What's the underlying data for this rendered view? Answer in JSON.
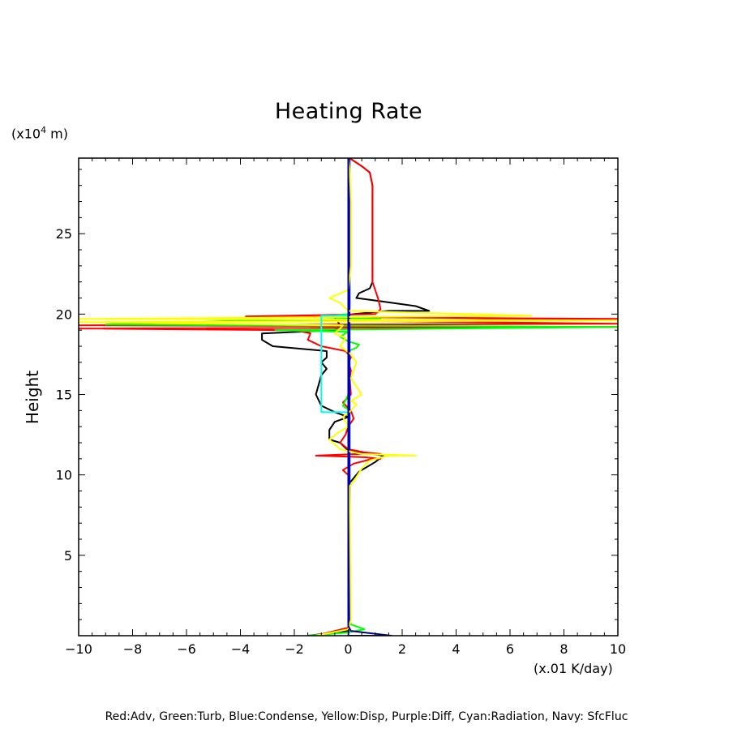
{
  "chart_data": {
    "type": "line",
    "title": "Heating Rate",
    "xlabel": "(x.01 K/day)",
    "ylabel": "Height",
    "yunit_prefix": "(x10",
    "yunit_exp": "4",
    "yunit_suffix": " m)",
    "xlim": [
      -10,
      10
    ],
    "ylim": [
      0,
      29.7
    ],
    "xticks": [
      -10,
      -8,
      -6,
      -4,
      -2,
      0,
      2,
      4,
      6,
      8,
      10
    ],
    "xtick_labels": [
      "−10",
      "−8",
      "−6",
      "−4",
      "−2",
      "0",
      "2",
      "4",
      "6",
      "8",
      "10"
    ],
    "yticks": [
      5,
      10,
      15,
      20,
      25
    ],
    "ytick_labels": [
      "5",
      "10",
      "15",
      "20",
      "25"
    ],
    "grid": false,
    "legend": "Red:Adv, Green:Turb, Blue:Condense, Yellow:Disp, Purple:Diff, Cyan:Radiation, Navy: SfcFluc",
    "series": [
      {
        "key": "total",
        "color": "#000000",
        "points": [
          [
            -1.5,
            0
          ],
          [
            0,
            0.3
          ],
          [
            0.05,
            1
          ],
          [
            0.05,
            9.5
          ],
          [
            0.4,
            10.2
          ],
          [
            1,
            10.8
          ],
          [
            1.3,
            11.2
          ],
          [
            0.5,
            11.4
          ],
          [
            0,
            11.5
          ],
          [
            -0.3,
            12
          ],
          [
            -0.7,
            12.2
          ],
          [
            -0.7,
            12.8
          ],
          [
            -0.5,
            13.3
          ],
          [
            0,
            13.6
          ],
          [
            -0.5,
            13.9
          ],
          [
            -1,
            14.3
          ],
          [
            -1.2,
            15
          ],
          [
            -1,
            16.2
          ],
          [
            -0.8,
            16.6
          ],
          [
            -1,
            17
          ],
          [
            -0.8,
            17.3
          ],
          [
            -0.8,
            17.7
          ],
          [
            -2.8,
            18
          ],
          [
            -3.2,
            18.4
          ],
          [
            -3.2,
            18.8
          ],
          [
            -0.5,
            19
          ],
          [
            -0.3,
            19.3
          ],
          [
            -0.5,
            19.8
          ],
          [
            0.2,
            20
          ],
          [
            1.5,
            20.2
          ],
          [
            3,
            20.2
          ],
          [
            2.5,
            20.5
          ],
          [
            1.2,
            20.8
          ],
          [
            0.3,
            21
          ],
          [
            0.4,
            21.3
          ],
          [
            0.8,
            21.6
          ],
          [
            0.9,
            22
          ],
          [
            0.9,
            28
          ],
          [
            0.8,
            28.8
          ],
          [
            0.5,
            29.2
          ],
          [
            0.05,
            29.7
          ]
        ]
      },
      {
        "key": "adv",
        "color": "#ff0000",
        "points": [
          [
            -1.2,
            0
          ],
          [
            0,
            0.5
          ],
          [
            0.05,
            1.2
          ],
          [
            0.05,
            9.6
          ],
          [
            0,
            10
          ],
          [
            -0.2,
            10.3
          ],
          [
            0.2,
            10.7
          ],
          [
            0.9,
            11
          ],
          [
            1.2,
            11
          ],
          [
            0.6,
            11.1
          ],
          [
            -1.2,
            11.2
          ],
          [
            0.4,
            11.3
          ],
          [
            1.2,
            11.3
          ],
          [
            0.6,
            11.4
          ],
          [
            0,
            11.6
          ],
          [
            -0.3,
            12
          ],
          [
            -0.1,
            12.5
          ],
          [
            0,
            13
          ],
          [
            0.2,
            13.5
          ],
          [
            0.1,
            14
          ],
          [
            -0.2,
            14.5
          ],
          [
            0.1,
            15
          ],
          [
            0.05,
            16
          ],
          [
            0.1,
            16.5
          ],
          [
            0,
            17
          ],
          [
            0.1,
            17.3
          ],
          [
            -0.1,
            17.7
          ],
          [
            -1,
            18
          ],
          [
            -1.5,
            18.4
          ],
          [
            -1.4,
            18.8
          ],
          [
            -2,
            19
          ],
          [
            -10,
            19.1
          ],
          [
            10,
            19.2
          ],
          [
            -10,
            19.3
          ],
          [
            10,
            19.4
          ],
          [
            -1,
            19.6
          ],
          [
            10,
            19.7
          ],
          [
            -3.8,
            19.85
          ],
          [
            1,
            20
          ],
          [
            1.2,
            20.3
          ],
          [
            1.1,
            21
          ],
          [
            0.9,
            22
          ],
          [
            0.9,
            28
          ],
          [
            0.8,
            28.8
          ],
          [
            0.5,
            29.2
          ],
          [
            0.05,
            29.7
          ]
        ]
      },
      {
        "key": "turb",
        "color": "#00ff00",
        "points": [
          [
            -1.5,
            0
          ],
          [
            0,
            0.2
          ],
          [
            0.6,
            0.4
          ],
          [
            0.1,
            0.7
          ],
          [
            0,
            1
          ],
          [
            0.05,
            4
          ],
          [
            0.05,
            14
          ],
          [
            -0.2,
            14.3
          ],
          [
            0,
            15
          ],
          [
            0,
            17.7
          ],
          [
            0.3,
            17.9
          ],
          [
            0.4,
            18.1
          ],
          [
            0,
            18.3
          ],
          [
            -0.3,
            18.6
          ],
          [
            0,
            18.9
          ],
          [
            -2.7,
            19
          ],
          [
            10,
            19.2
          ],
          [
            -9,
            19.35
          ],
          [
            -3.8,
            19.6
          ],
          [
            1.2,
            19.7
          ],
          [
            -1,
            19.8
          ],
          [
            0,
            20
          ],
          [
            0.05,
            20.5
          ],
          [
            0.05,
            29.7
          ]
        ]
      },
      {
        "key": "condense",
        "color": "#0000ff",
        "points": [
          [
            0,
            0
          ],
          [
            0.05,
            1
          ],
          [
            0.05,
            29.7
          ]
        ]
      },
      {
        "key": "disp",
        "color": "#ffff00",
        "points": [
          [
            -1.2,
            0
          ],
          [
            0,
            0.4
          ],
          [
            0.1,
            1
          ],
          [
            0.05,
            9.3
          ],
          [
            0.2,
            9.6
          ],
          [
            0.5,
            10.4
          ],
          [
            0.8,
            10.9
          ],
          [
            1.5,
            11.2
          ],
          [
            2.5,
            11.2
          ],
          [
            0.5,
            11.3
          ],
          [
            -0.3,
            11.6
          ],
          [
            -0.7,
            12.2
          ],
          [
            -0.4,
            12.6
          ],
          [
            0,
            13
          ],
          [
            -0.2,
            13.6
          ],
          [
            0.1,
            14
          ],
          [
            0.3,
            14.4
          ],
          [
            0.1,
            14.6
          ],
          [
            0.5,
            15
          ],
          [
            0.3,
            15.5
          ],
          [
            0.1,
            16
          ],
          [
            0.3,
            17
          ],
          [
            0.1,
            17.5
          ],
          [
            -0.3,
            18
          ],
          [
            -0.1,
            18.5
          ],
          [
            -0.5,
            18.8
          ],
          [
            -0.3,
            19.1
          ],
          [
            -0.2,
            19.3
          ],
          [
            -10,
            19.5
          ],
          [
            10,
            19.6
          ],
          [
            -10,
            19.7
          ],
          [
            6.8,
            19.9
          ],
          [
            0,
            20.2
          ],
          [
            -0.3,
            20.7
          ],
          [
            -0.7,
            21
          ],
          [
            0,
            21.5
          ],
          [
            0.1,
            23
          ],
          [
            0.1,
            27
          ],
          [
            0.05,
            29
          ],
          [
            0,
            29.7
          ]
        ]
      },
      {
        "key": "radiation",
        "color": "#00ffff",
        "points": [
          [
            0,
            13.9
          ],
          [
            -1,
            13.9
          ],
          [
            -1,
            19.9
          ],
          [
            0,
            19.9
          ]
        ]
      },
      {
        "key": "sfcfluc",
        "color": "#000080",
        "points": [
          [
            0,
            0
          ],
          [
            1.6,
            0
          ],
          [
            0.1,
            0.3
          ],
          [
            0,
            0.6
          ],
          [
            0,
            29.7
          ]
        ]
      }
    ]
  }
}
